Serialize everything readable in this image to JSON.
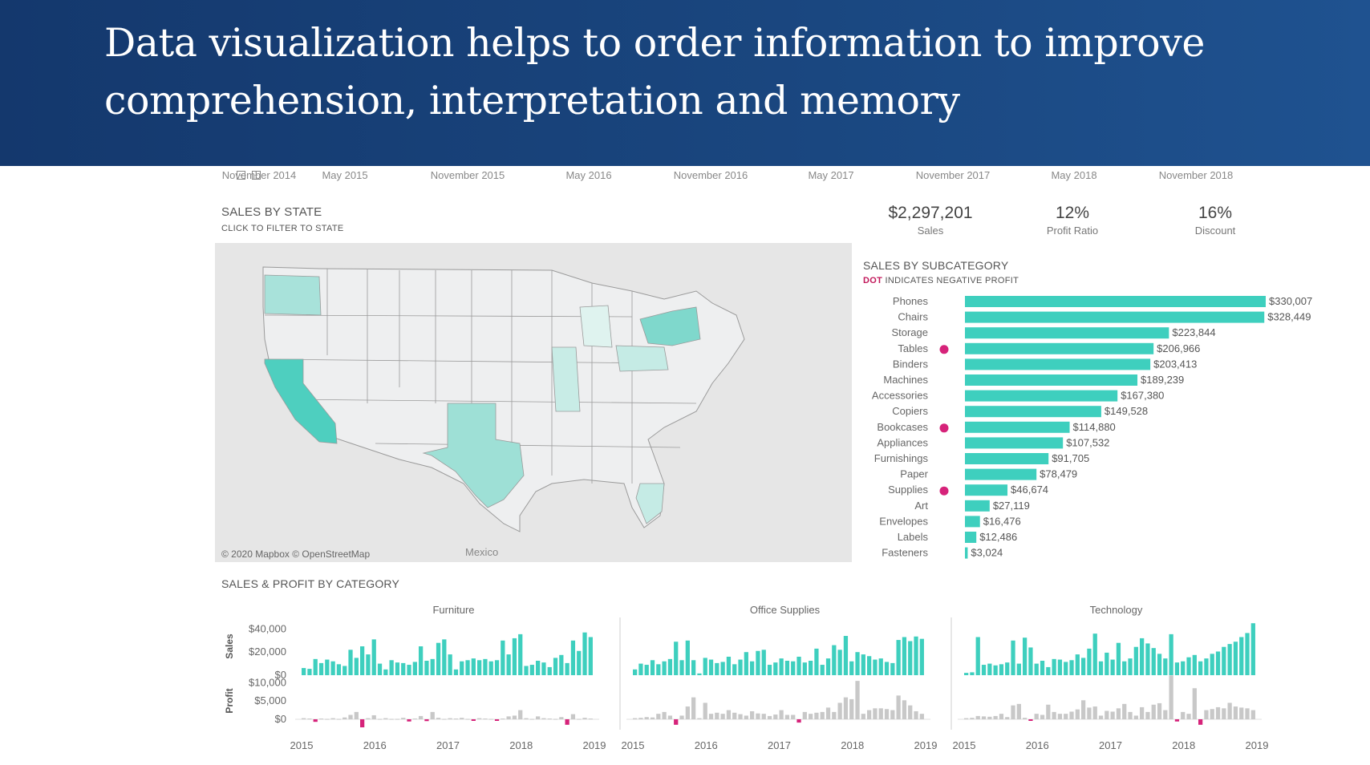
{
  "slide": {
    "title": "Data visualization helps to order information to improve comprehension, interpretation and memory"
  },
  "timeline": {
    "labels": [
      "November 2014",
      "May 2015",
      "November 2015",
      "May 2016",
      "November 2016",
      "May 2017",
      "November 2017",
      "May 2018",
      "November 2018"
    ]
  },
  "map": {
    "title": "SALES BY STATE",
    "subtitle": "CLICK TO FILTER TO STATE",
    "credit": "© 2020 Mapbox © OpenStreetMap",
    "country_label": "Mexico"
  },
  "kpis": [
    {
      "value": "$2,297,201",
      "label": "Sales"
    },
    {
      "value": "12%",
      "label": "Profit Ratio"
    },
    {
      "value": "16%",
      "label": "Discount"
    }
  ],
  "colors": {
    "bar": "#3ecfbe",
    "negative": "#d6237a",
    "profit_bar": "#c8c8c8",
    "banner": "#163e75"
  },
  "chart_data": [
    {
      "type": "bar",
      "orientation": "horizontal",
      "title": "SALES BY SUBCATEGORY",
      "subtitle_prefix": "DOT",
      "subtitle_rest": " INDICATES NEGATIVE PROFIT",
      "categories": [
        "Phones",
        "Chairs",
        "Storage",
        "Tables",
        "Binders",
        "Machines",
        "Accessories",
        "Copiers",
        "Bookcases",
        "Appliances",
        "Furnishings",
        "Paper",
        "Supplies",
        "Art",
        "Envelopes",
        "Labels",
        "Fasteners"
      ],
      "values": [
        330007,
        328449,
        223844,
        206966,
        203413,
        189239,
        167380,
        149528,
        114880,
        107532,
        91705,
        78479,
        46674,
        27119,
        16476,
        12486,
        3024
      ],
      "value_labels": [
        "$330,007",
        "$328,449",
        "$223,844",
        "$206,966",
        "$203,413",
        "$189,239",
        "$167,380",
        "$149,528",
        "$114,880",
        "$107,532",
        "$91,705",
        "$78,479",
        "$46,674",
        "$27,119",
        "$16,476",
        "$12,486",
        "$3,024"
      ],
      "negative_profit": [
        "Tables",
        "Bookcases",
        "Supplies"
      ]
    },
    {
      "type": "bar",
      "title": "SALES & PROFIT BY CATEGORY",
      "panels": [
        "Furniture",
        "Office Supplies",
        "Technology"
      ],
      "x_ticks": [
        "2015",
        "2016",
        "2017",
        "2018",
        "2019"
      ],
      "sales_axis": {
        "label": "Sales",
        "ticks": [
          "$40,000",
          "$20,000",
          "$0"
        ],
        "ylim": [
          0,
          50000
        ]
      },
      "profit_axis": {
        "label": "Profit",
        "ticks": [
          "$10,000",
          "$5,000",
          "$0"
        ],
        "ylim": [
          -2500,
          12500
        ]
      },
      "series": [
        {
          "panel": "Furniture",
          "sales": [
            6200,
            5500,
            14000,
            10500,
            13500,
            12000,
            9500,
            8000,
            22000,
            15000,
            25000,
            18000,
            31000,
            10000,
            5000,
            13000,
            11000,
            10500,
            9000,
            11500,
            25000,
            12500,
            14000,
            28000,
            31000,
            18000,
            5000,
            12000,
            13000,
            14500,
            13000,
            14000,
            12000,
            13000,
            30000,
            18000,
            32000,
            35500,
            8000,
            9000,
            12500,
            11000,
            7000,
            15000,
            17500,
            10500,
            30000,
            21000,
            37000,
            33000
          ],
          "profit": [
            300,
            200,
            -700,
            200,
            100,
            300,
            100,
            500,
            1200,
            2000,
            -2200,
            300,
            1100,
            100,
            300,
            100,
            100,
            400,
            -600,
            200,
            900,
            -500,
            2000,
            400,
            100,
            300,
            200,
            400,
            100,
            -200,
            300,
            200,
            100,
            -300,
            200,
            800,
            1000,
            2500,
            300,
            100,
            800,
            300,
            200,
            100,
            600,
            -1500,
            1400,
            100,
            400,
            200
          ]
        },
        {
          "panel": "Office Supplies",
          "sales": [
            5000,
            10000,
            9000,
            13000,
            9500,
            12000,
            14000,
            29000,
            13000,
            30000,
            13000,
            1500,
            15000,
            13500,
            10500,
            11500,
            16000,
            9500,
            13500,
            20000,
            12000,
            21000,
            22000,
            9000,
            11000,
            14500,
            12500,
            12000,
            16000,
            11000,
            12500,
            23000,
            9000,
            14500,
            26000,
            22000,
            34000,
            12000,
            20000,
            18000,
            16500,
            13500,
            14500,
            11500,
            10500,
            30500,
            33000,
            29500,
            33500,
            31500
          ],
          "profit": [
            300,
            400,
            600,
            500,
            1500,
            2000,
            1000,
            -1500,
            1000,
            3500,
            6000,
            300,
            4500,
            1500,
            1800,
            1500,
            2500,
            1800,
            1400,
            1000,
            2200,
            1600,
            1500,
            900,
            1300,
            2500,
            1200,
            1200,
            -900,
            2000,
            1500,
            1800,
            2000,
            3200,
            2000,
            4500,
            6000,
            5500,
            10500,
            1500,
            2500,
            3000,
            3000,
            2800,
            2500,
            6500,
            5200,
            3800,
            2200,
            1500
          ]
        },
        {
          "panel": "Technology",
          "sales": [
            2000,
            2500,
            33000,
            9000,
            10000,
            8500,
            9500,
            11000,
            30000,
            10000,
            32500,
            24000,
            10000,
            12500,
            7000,
            14000,
            13500,
            11500,
            13000,
            18000,
            15000,
            23000,
            36000,
            12000,
            19500,
            13500,
            28000,
            12000,
            14500,
            24500,
            32000,
            27500,
            23500,
            18500,
            14500,
            35500,
            11000,
            12000,
            15500,
            17500,
            12000,
            14500,
            18500,
            20500,
            24500,
            27000,
            29000,
            33000,
            36500,
            45000
          ],
          "profit": [
            300,
            400,
            900,
            800,
            700,
            900,
            1500,
            600,
            3800,
            4200,
            400,
            -300,
            1500,
            1200,
            4000,
            2000,
            1500,
            1500,
            2100,
            2700,
            5200,
            3200,
            3500,
            1000,
            2300,
            2100,
            3000,
            4200,
            2000,
            1000,
            3300,
            2000,
            4000,
            4400,
            2500,
            12000,
            -600,
            2000,
            1500,
            8500,
            -1500,
            2500,
            2800,
            3300,
            3000,
            4500,
            3500,
            3200,
            3000,
            2500
          ]
        }
      ]
    }
  ]
}
